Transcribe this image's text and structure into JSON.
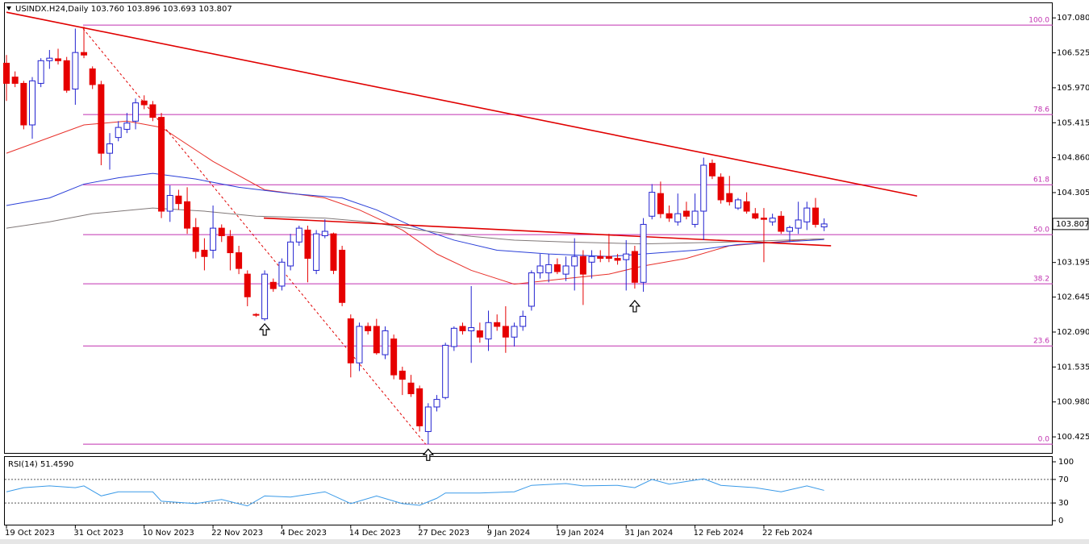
{
  "chart_data": [
    {
      "type": "candlestick",
      "title": "USINDX.H24,Daily  103.760 103.896 103.693 103.807",
      "categories": [
        "19 Oct 2023",
        null,
        null,
        null,
        null,
        null,
        null,
        null,
        "31 Oct 2023",
        null,
        null,
        null,
        null,
        null,
        null,
        null,
        "10 Nov 2023",
        null,
        null,
        null,
        null,
        null,
        null,
        null,
        "22 Nov 2023",
        null,
        null,
        null,
        null,
        null,
        null,
        null,
        "4 Dec 2023",
        null,
        null,
        null,
        null,
        null,
        null,
        null,
        "14 Dec 2023",
        null,
        null,
        null,
        null,
        null,
        null,
        null,
        "27 Dec 2023",
        null,
        null,
        null,
        null,
        null,
        null,
        null,
        "9 Jan 2024",
        null,
        null,
        null,
        null,
        null,
        null,
        null,
        "19 Jan 2024",
        null,
        null,
        null,
        null,
        null,
        null,
        null,
        "31 Jan 2024",
        null,
        null,
        null,
        null,
        null,
        null,
        null,
        "12 Feb 2024",
        null,
        null,
        null,
        null,
        null,
        null,
        null,
        "22 Feb 2024",
        null,
        null,
        null,
        null,
        null,
        null,
        null
      ],
      "open": [
        106.36,
        106.14,
        106.04,
        105.38,
        106.04,
        106.4,
        106.43,
        106.4,
        105.95,
        106.53,
        106.27,
        106.02,
        104.93,
        105.18,
        105.31,
        105.44,
        105.76,
        105.7,
        105.5,
        104.01,
        104.25,
        104.16,
        103.75,
        103.39,
        103.39,
        103.74,
        103.61,
        103.35,
        103.01,
        102.37,
        102.3,
        102.88,
        102.82,
        103.14,
        103.52,
        103.71,
        103.07,
        103.62,
        103.65,
        103.39,
        102.3,
        101.6,
        102.18,
        102.18,
        101.73,
        101.98,
        101.47,
        101.28,
        101.19,
        100.51,
        100.9,
        101.05,
        101.86,
        102.18,
        102.11,
        102.11,
        101.98,
        102.24,
        102.18,
        102.01,
        102.18,
        102.5,
        103.03,
        103.03,
        103.16,
        103.01,
        103.14,
        103.29,
        103.2,
        103.29,
        103.29,
        103.26,
        103.24,
        103.37,
        102.88,
        103.93,
        104.29,
        103.97,
        103.84,
        104.01,
        103.8,
        104.01,
        104.77,
        104.55,
        104.29,
        104.06,
        104.16,
        103.97,
        103.9,
        103.84,
        103.93,
        103.69,
        103.74,
        103.84,
        104.06,
        103.76
      ],
      "high": [
        106.49,
        106.23,
        106.08,
        106.14,
        106.44,
        106.57,
        106.59,
        106.46,
        106.91,
        106.94,
        106.31,
        106.08,
        105.25,
        105.44,
        105.57,
        105.8,
        105.85,
        105.76,
        105.57,
        104.42,
        104.35,
        104.39,
        103.9,
        103.58,
        104.1,
        103.8,
        103.71,
        103.46,
        103.07,
        102.39,
        103.07,
        102.94,
        103.26,
        103.65,
        103.78,
        103.78,
        103.71,
        103.88,
        103.67,
        103.46,
        102.37,
        102.24,
        102.24,
        102.3,
        102.18,
        102.05,
        101.54,
        101.41,
        101.24,
        100.96,
        101.09,
        101.92,
        102.18,
        102.24,
        102.82,
        102.24,
        102.43,
        102.37,
        102.5,
        102.24,
        102.43,
        103.07,
        103.33,
        103.33,
        103.26,
        103.29,
        103.58,
        103.39,
        103.39,
        103.39,
        103.65,
        103.33,
        103.55,
        103.46,
        103.9,
        104.44,
        104.48,
        104.1,
        104.29,
        104.16,
        104.29,
        104.86,
        104.83,
        104.61,
        104.57,
        104.22,
        104.31,
        104.06,
        104.06,
        103.97,
        104.01,
        103.78,
        104.16,
        104.16,
        104.22,
        103.896
      ],
      "low": [
        105.76,
        105.98,
        105.31,
        105.16,
        105.98,
        106.27,
        106.34,
        105.89,
        105.7,
        106.44,
        105.95,
        104.74,
        104.67,
        105.12,
        105.25,
        105.31,
        105.63,
        105.44,
        103.9,
        103.84,
        104.03,
        103.65,
        103.26,
        103.07,
        103.26,
        103.52,
        103.07,
        103.01,
        102.5,
        102.33,
        102.27,
        102.73,
        102.75,
        103.07,
        103.46,
        102.88,
        103.01,
        103.58,
        103.01,
        102.5,
        101.37,
        101.47,
        102.05,
        101.73,
        101.66,
        101.34,
        101.09,
        101.06,
        100.51,
        100.31,
        100.83,
        101.02,
        101.79,
        102.05,
        101.6,
        101.92,
        101.79,
        102.11,
        101.76,
        101.86,
        102.11,
        102.43,
        102.94,
        102.88,
        103.01,
        102.9,
        102.75,
        102.52,
        102.94,
        103.2,
        103.2,
        103.16,
        102.75,
        102.78,
        102.73,
        103.88,
        103.9,
        103.84,
        103.78,
        103.88,
        103.75,
        103.55,
        104.52,
        104.13,
        104.1,
        104.03,
        103.97,
        103.88,
        103.2,
        103.78,
        103.65,
        103.52,
        103.65,
        103.71,
        103.75,
        103.693
      ],
      "close": [
        106.04,
        106.04,
        105.38,
        106.08,
        106.4,
        106.44,
        106.4,
        105.93,
        106.53,
        106.49,
        106.02,
        104.93,
        105.08,
        105.34,
        105.41,
        105.73,
        105.7,
        105.5,
        104.01,
        104.26,
        104.13,
        103.74,
        103.37,
        103.29,
        103.74,
        103.62,
        103.35,
        103.1,
        102.65,
        102.36,
        103.01,
        102.78,
        103.2,
        103.52,
        103.74,
        103.26,
        103.65,
        103.69,
        103.07,
        102.56,
        101.6,
        102.18,
        102.11,
        101.76,
        102.11,
        101.41,
        101.34,
        101.11,
        100.6,
        100.9,
        101.02,
        101.88,
        102.15,
        102.11,
        102.16,
        102.01,
        102.24,
        102.18,
        102.01,
        102.18,
        102.34,
        103.03,
        103.14,
        103.16,
        103.05,
        103.14,
        103.29,
        103.01,
        103.29,
        103.26,
        103.26,
        103.23,
        103.33,
        102.88,
        103.8,
        104.31,
        103.97,
        103.9,
        103.97,
        103.93,
        104.01,
        104.74,
        104.57,
        104.19,
        104.16,
        104.19,
        104.01,
        103.9,
        103.88,
        103.9,
        103.69,
        103.75,
        103.87,
        104.06,
        103.8,
        103.807
      ],
      "up_color": "#2323d0",
      "down_color": "#e60000",
      "ylim": [
        100.17,
        107.3
      ],
      "yticks": [
        {
          "value": 107.08,
          "label": "107.080"
        },
        106.525,
        {
          "value": 105.97,
          "label": "105.970"
        },
        105.415,
        {
          "value": 104.86,
          "label": "104.860"
        },
        104.305,
        103.195,
        102.645,
        {
          "value": 102.09,
          "label": "102.090"
        },
        101.535,
        {
          "value": 100.98,
          "label": "100.980"
        },
        100.425
      ],
      "price_label": 103.807,
      "fib_color": "#c030b0",
      "fib_levels": [
        {
          "value": 106.965,
          "label": "100.0"
        },
        {
          "value": 105.544,
          "label": "78.6"
        },
        {
          "value": 104.43,
          "label": "61.8"
        },
        {
          "value": 103.637,
          "label": "50.0"
        },
        {
          "value": 102.856,
          "label": "38.2"
        },
        {
          "value": 101.87,
          "label": "23.6"
        },
        {
          "value": 100.31,
          "label": "0.0"
        }
      ],
      "trendlines": [
        {
          "color": "#e00000",
          "dashed": false,
          "x": [
            0,
            105.8
          ],
          "y": [
            107.17,
            104.25
          ]
        },
        {
          "color": "#e00000",
          "dashed": false,
          "x": [
            29.9,
            95.8
          ],
          "y": [
            103.9,
            103.46
          ]
        },
        {
          "color": "#e00000",
          "dashed": true,
          "x": [
            8.9,
            48.7
          ],
          "y": [
            106.91,
            100.31
          ]
        }
      ],
      "overlays": [
        {
          "color": "#e8302a",
          "x": [
            0,
            5,
            9,
            14,
            18,
            24,
            30,
            37,
            41,
            46,
            50,
            54,
            59,
            65,
            70,
            74,
            79,
            84,
            93,
            95
          ],
          "values": [
            104.93,
            105.18,
            105.38,
            105.44,
            105.34,
            104.8,
            104.35,
            104.22,
            104.03,
            103.71,
            103.33,
            103.07,
            102.85,
            102.94,
            103.01,
            103.14,
            103.26,
            103.46,
            103.56,
            103.57
          ]
        },
        {
          "color": "#2a3fd8",
          "x": [
            0,
            5,
            9,
            13,
            17,
            22,
            27,
            33,
            39,
            43,
            47,
            52,
            57,
            63,
            70,
            74,
            80,
            85,
            95
          ],
          "values": [
            104.1,
            104.22,
            104.44,
            104.54,
            104.61,
            104.52,
            104.39,
            104.29,
            104.22,
            104.03,
            103.78,
            103.55,
            103.39,
            103.33,
            103.29,
            103.33,
            103.39,
            103.48,
            103.56
          ]
        },
        {
          "color": "#807878",
          "x": [
            0,
            5,
            10,
            17,
            23,
            29,
            37,
            42,
            48,
            54,
            59,
            65,
            74,
            84,
            95
          ],
          "values": [
            103.74,
            103.84,
            103.97,
            104.06,
            104.01,
            103.93,
            103.9,
            103.84,
            103.71,
            103.61,
            103.55,
            103.52,
            103.49,
            103.52,
            103.57
          ]
        }
      ],
      "arrows": [
        {
          "x": 30,
          "y": 102.22
        },
        {
          "x": 49,
          "y": 100.23
        },
        {
          "x": 73,
          "y": 102.59
        }
      ]
    },
    {
      "type": "line",
      "title": "RSI(14) 51.4590",
      "color": "#3a9ae8",
      "x": [
        0,
        2,
        5,
        8,
        9,
        11,
        13,
        17,
        18,
        22,
        25,
        28,
        30,
        33,
        37,
        40,
        43,
        46,
        48,
        50,
        51,
        55,
        59,
        61,
        65,
        67,
        71,
        73,
        75,
        77,
        81,
        83,
        87,
        90,
        93,
        95
      ],
      "values": [
        49,
        56,
        59,
        56,
        59,
        42,
        49,
        49,
        33,
        29,
        36,
        25,
        42,
        40,
        49,
        29,
        42,
        29,
        26,
        38,
        47,
        47,
        49,
        60,
        63,
        59,
        60,
        56,
        70,
        62,
        71,
        60,
        56,
        49,
        59,
        51.459
      ],
      "ylim": [
        0,
        100
      ],
      "yticks": [
        100,
        70,
        30,
        0
      ],
      "levels": [
        70,
        30
      ]
    }
  ]
}
